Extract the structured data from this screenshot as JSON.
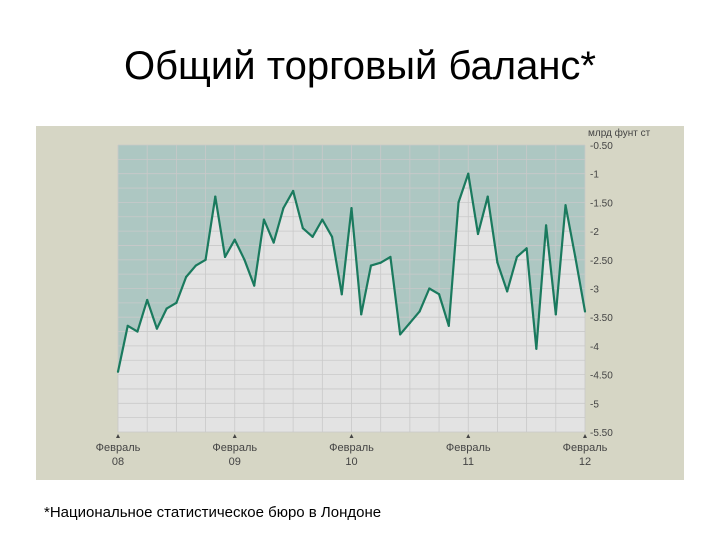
{
  "slide": {
    "title": "Общий торговый баланс*",
    "footnote": "*Национальное статистическое бюро в Лондоне"
  },
  "colors": {
    "panel_bg": "#d6d6c5",
    "plot_bg": "#e3e3e3",
    "area_fill": "#adc7c2",
    "line": "#1a7a5e",
    "grid": "#c9c9c9",
    "axis_text": "#444444"
  },
  "chart_data": {
    "type": "line",
    "title": "",
    "xlabel": "",
    "ylabel": "млрд фунт ст",
    "ylim": [
      -5.5,
      -0.5
    ],
    "y_ticks": [
      -0.5,
      -1,
      -1.5,
      -2,
      -2.5,
      -3,
      -3.5,
      -4,
      -4.5,
      -5,
      -5.5
    ],
    "y_tick_labels": [
      "-0.50",
      "-1",
      "-1.50",
      "-2",
      "-2.50",
      "-3",
      "-3.50",
      "-4",
      "-4.50",
      "-5",
      "-5.50"
    ],
    "x_ticks": [
      {
        "x": 0,
        "month": "Февраль",
        "year": "08"
      },
      {
        "x": 12,
        "month": "Февраль",
        "year": "09"
      },
      {
        "x": 24,
        "month": "Февраль",
        "year": "10"
      },
      {
        "x": 36,
        "month": "Февраль",
        "year": "11"
      },
      {
        "x": 48,
        "month": "Февраль",
        "year": "12"
      }
    ],
    "grid": true,
    "area_to": "top",
    "series": [
      {
        "values": [
          -4.45,
          -3.65,
          -3.75,
          -3.2,
          -3.7,
          -3.35,
          -3.25,
          -2.8,
          -2.6,
          -2.5,
          -1.4,
          -2.45,
          -2.15,
          -2.5,
          -2.95,
          -1.8,
          -2.2,
          -1.6,
          -1.3,
          -1.95,
          -2.1,
          -1.8,
          -2.1,
          -3.1,
          -1.6,
          -3.45,
          -2.6,
          -2.55,
          -2.45,
          -3.8,
          -3.6,
          -3.4,
          -3.0,
          -3.1,
          -3.65,
          -1.5,
          -1.0,
          -2.05,
          -1.4,
          -2.55,
          -3.05,
          -2.45,
          -2.3,
          -4.05,
          -1.9,
          -3.45,
          -1.55,
          -2.45,
          -3.4
        ]
      }
    ]
  }
}
